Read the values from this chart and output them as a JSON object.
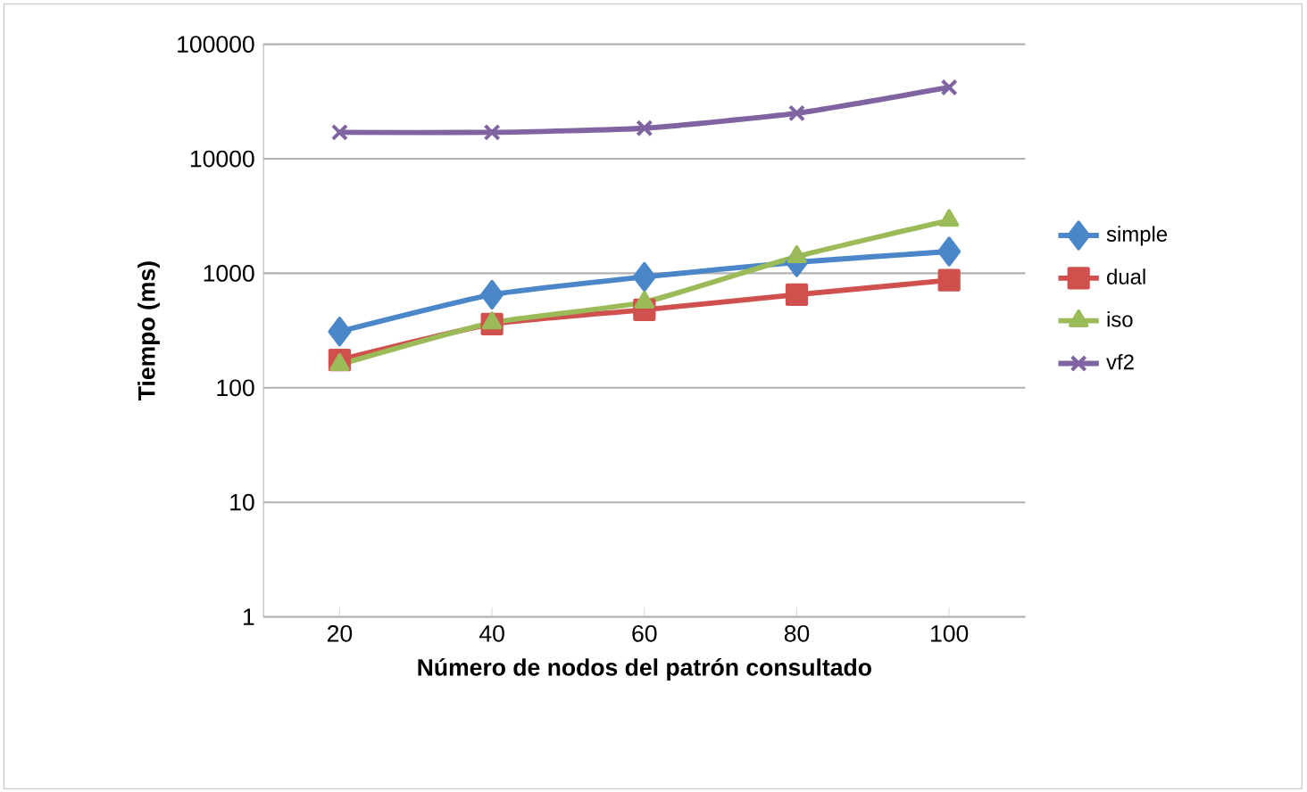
{
  "chart_data": {
    "type": "line",
    "xlabel": "Número de nodos del patrón consultado",
    "ylabel": "Tiempo (ms)",
    "categories": [
      "20",
      "40",
      "60",
      "80",
      "100"
    ],
    "series": [
      {
        "name": "simple",
        "color": "#4a86c8",
        "marker": "diamond",
        "values": [
          310,
          650,
          930,
          1250,
          1550
        ]
      },
      {
        "name": "dual",
        "color": "#d0504d",
        "marker": "square",
        "values": [
          175,
          360,
          480,
          650,
          870
        ]
      },
      {
        "name": "iso",
        "color": "#9bbb59",
        "marker": "triangle",
        "values": [
          160,
          370,
          560,
          1400,
          2900
        ]
      },
      {
        "name": "vf2",
        "color": "#8064a2",
        "marker": "cross",
        "values": [
          17000,
          17000,
          18500,
          25000,
          42000
        ]
      }
    ],
    "log": "y",
    "ylim": [
      1,
      100000
    ],
    "yticks": [
      1,
      10,
      100,
      1000,
      10000,
      100000
    ],
    "grid": "y",
    "legend": "right"
  }
}
